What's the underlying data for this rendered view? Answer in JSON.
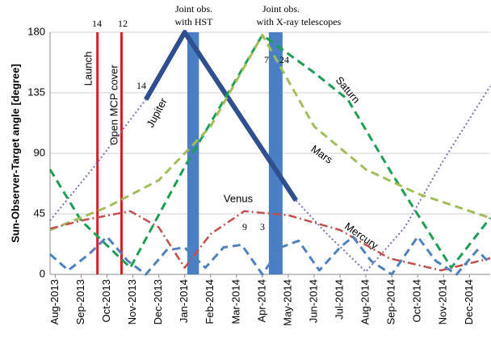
{
  "chart_data": {
    "type": "line",
    "y_label": "Sun-Observer-Target angle [degree]",
    "xlim": [
      -0.2,
      16.8
    ],
    "xticks": [
      {
        "value": 0,
        "label": "Aug-2013"
      },
      {
        "value": 1,
        "label": "Sep-2013"
      },
      {
        "value": 2,
        "label": "Oct-2013"
      },
      {
        "value": 3,
        "label": "Nov-2013"
      },
      {
        "value": 4,
        "label": "Dec-2013"
      },
      {
        "value": 5,
        "label": "Jan-2014"
      },
      {
        "value": 6,
        "label": "Feb-2014"
      },
      {
        "value": 7,
        "label": "Mar-2014"
      },
      {
        "value": 8,
        "label": "Apr-2014"
      },
      {
        "value": 9,
        "label": "May-2014"
      },
      {
        "value": 10,
        "label": "Jun-2014"
      },
      {
        "value": 11,
        "label": "Jul-2014"
      },
      {
        "value": 12,
        "label": "Aug-2014"
      },
      {
        "value": 13,
        "label": "Sep-2014"
      },
      {
        "value": 14,
        "label": "Oct-2014"
      },
      {
        "value": 15,
        "label": "Nov-2014"
      },
      {
        "value": 16,
        "label": "Dec-2014"
      }
    ],
    "ylim": [
      0,
      180
    ],
    "yticks": [
      0,
      45,
      90,
      135,
      180
    ],
    "grid": true,
    "series": [
      {
        "name": "Jupiter",
        "color": "#2f4f8f",
        "style": "thick",
        "x": [
          3.5,
          5.0,
          9.3
        ],
        "values": [
          130,
          180,
          55
        ]
      },
      {
        "color": "#7b6fb0",
        "style": "dotted",
        "x": [
          -0.2,
          1.5,
          3.5
        ],
        "values": [
          40,
          80,
          130
        ]
      },
      {
        "color": "#7b6fb0",
        "style": "dotted",
        "x": [
          9.3,
          10.5,
          12.0,
          13.5,
          15.0,
          16.8
        ],
        "values": [
          55,
          30,
          2,
          35,
          85,
          140
        ]
      },
      {
        "name": "Saturn",
        "color": "#1e9e55",
        "style": "dashed",
        "x": [
          -0.2,
          1.0,
          2.9,
          5.0,
          8.0,
          10.0,
          11.3,
          13.0,
          15.3,
          16.8
        ],
        "values": [
          78,
          40,
          5,
          80,
          178,
          150,
          130,
          75,
          5,
          42
        ]
      },
      {
        "name": "Mars",
        "color": "#a3bd5a",
        "style": "dashed",
        "x": [
          -0.2,
          2.0,
          4.0,
          6.0,
          8.0,
          10.0,
          12.0,
          14.0,
          16.8
        ],
        "values": [
          33,
          50,
          70,
          110,
          178,
          110,
          78,
          60,
          42
        ]
      },
      {
        "name": "Venus",
        "color": "#c0504d",
        "style": "dashdot",
        "x": [
          -0.2,
          1.0,
          2.9,
          4.0,
          5.0,
          6.0,
          7.3,
          9.0,
          11.0,
          12.9,
          14.9,
          16.8
        ],
        "values": [
          34,
          40,
          47,
          35,
          5,
          30,
          47,
          44,
          33,
          12,
          3,
          12
        ]
      },
      {
        "name": "Mercury",
        "color": "#4f81bd",
        "style": "dashed",
        "x": [
          -0.2,
          0.5,
          1.3,
          2.0,
          2.8,
          3.5,
          4.3,
          5.0,
          5.8,
          6.5,
          7.2,
          8.0,
          8.7,
          9.4,
          10.2,
          11.0,
          11.5,
          12.2,
          13.0,
          14.0,
          14.7,
          15.5,
          16.3,
          16.8
        ],
        "values": [
          15,
          3,
          15,
          28,
          10,
          0,
          18,
          20,
          5,
          20,
          22,
          0,
          20,
          25,
          3,
          20,
          28,
          10,
          0,
          28,
          10,
          0,
          18,
          8
        ]
      }
    ],
    "events": [
      {
        "label": "Launch",
        "x": 1.63,
        "color": "#d62020"
      },
      {
        "label": "Open MCP cover",
        "x": 2.56,
        "color": "#d62020"
      }
    ],
    "observations": [
      {
        "lines": [
          "Joint obs.",
          "with HST"
        ],
        "x": [
          5.1,
          5.55
        ],
        "color": "#4a7fc4"
      },
      {
        "lines": [
          "Joint obs.",
          "with X-ray telescopes"
        ],
        "x": [
          8.25,
          8.78
        ],
        "color": "#4a7fc4"
      }
    ],
    "annotations": [
      "14",
      "12",
      "14",
      "7",
      "24",
      "9",
      "3"
    ]
  }
}
